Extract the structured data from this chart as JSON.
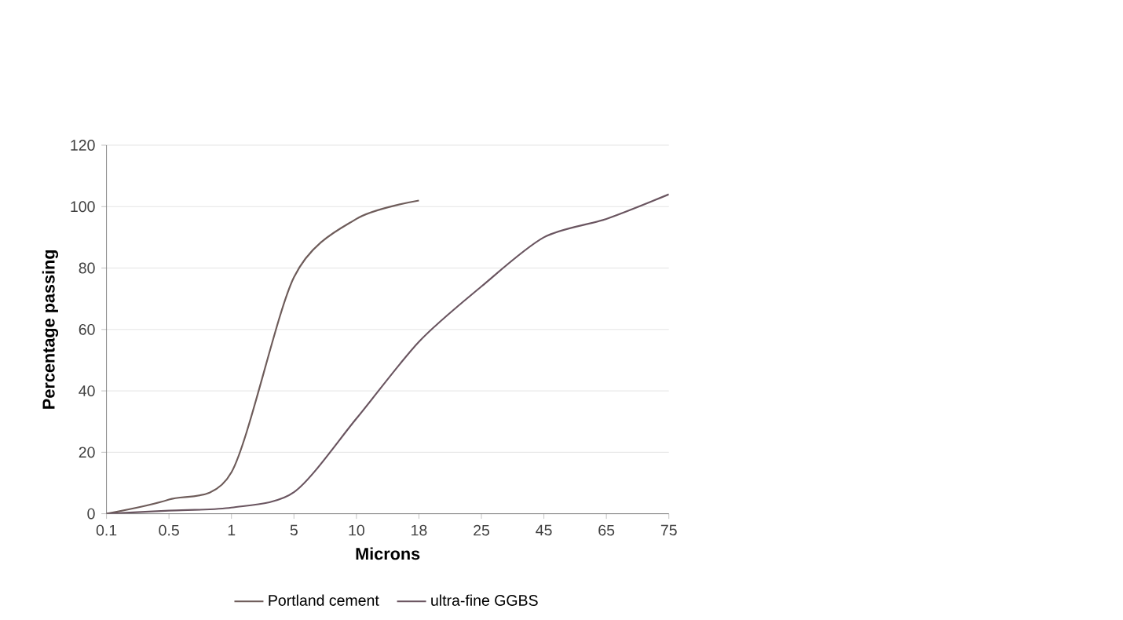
{
  "chart_data": {
    "type": "line",
    "xlabel": "Microns",
    "ylabel": "Percentage passing",
    "categories": [
      "0.1",
      "0.5",
      "1",
      "5",
      "10",
      "18",
      "25",
      "45",
      "65",
      "75"
    ],
    "series": [
      {
        "name": "Portland cement",
        "color": "#6e5c5a",
        "values": [
          0,
          4.6,
          13.5,
          77,
          96,
          102,
          null,
          null,
          null,
          null
        ]
      },
      {
        "name": "ultra-fine GGBS",
        "color": "#6a5560",
        "values": [
          0,
          1,
          2,
          7,
          31,
          56,
          74,
          90,
          96,
          104
        ]
      }
    ],
    "ylim": [
      0,
      120
    ],
    "yticks": [
      0,
      20,
      40,
      60,
      80,
      100,
      120
    ],
    "grid": "y",
    "legend": "bottom",
    "marker": "none",
    "line_style": "solid"
  }
}
